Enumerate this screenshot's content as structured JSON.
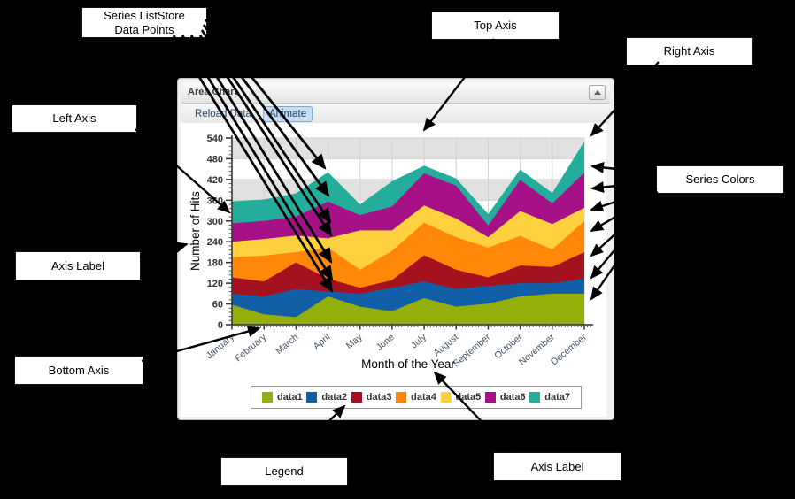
{
  "panel": {
    "title": "Area Chart",
    "toolbar": {
      "reload_label": "Reload Data",
      "animate_label": "Animate"
    }
  },
  "annotations": {
    "series_liststore": {
      "line1": "Series ListStore",
      "line2": "Data Points"
    },
    "top_axis": "Top Axis",
    "right_axis": "Right Axis",
    "left_axis": "Left Axis",
    "series_colors": "Series Colors",
    "axis_label_left": "Axis Label",
    "bottom_axis": "Bottom Axis",
    "legend": "Legend",
    "axis_label_bottom": "Axis Label"
  },
  "chart_data": {
    "type": "area",
    "stacked": true,
    "xlabel": "Month of the Year",
    "ylabel": "Number of Hits",
    "ylim": [
      0,
      540
    ],
    "ytick_step": 60,
    "grid": true,
    "legend_position": "bottom",
    "band_gray": "#e1e1e1",
    "categories": [
      "January",
      "February",
      "March",
      "April",
      "May",
      "June",
      "July",
      "August",
      "September",
      "October",
      "November",
      "December"
    ],
    "series": [
      {
        "name": "data1",
        "color": "#94ae0a",
        "values": [
          58,
          30,
          22,
          82,
          52,
          39,
          77,
          52,
          61,
          82,
          90,
          90
        ]
      },
      {
        "name": "data2",
        "color": "#115fa6",
        "values": [
          32,
          52,
          81,
          14,
          38,
          68,
          48,
          51,
          51,
          38,
          30,
          43
        ]
      },
      {
        "name": "data3",
        "color": "#a61120",
        "values": [
          47,
          43,
          77,
          37,
          17,
          22,
          76,
          56,
          25,
          51,
          47,
          77
        ]
      },
      {
        "name": "data4",
        "color": "#ff8809",
        "values": [
          58,
          75,
          30,
          90,
          52,
          85,
          94,
          94,
          86,
          86,
          51,
          90
        ]
      },
      {
        "name": "data5",
        "color": "#ffd13e",
        "values": [
          45,
          48,
          48,
          27,
          114,
          59,
          50,
          54,
          30,
          72,
          73,
          38
        ]
      },
      {
        "name": "data6",
        "color": "#a61187",
        "values": [
          53,
          52,
          55,
          106,
          44,
          69,
          93,
          95,
          34,
          90,
          60,
          102
        ]
      },
      {
        "name": "data7",
        "color": "#24ad9a",
        "values": [
          64,
          62,
          67,
          85,
          31,
          73,
          22,
          21,
          33,
          30,
          30,
          90
        ]
      }
    ]
  },
  "arrows": [
    {
      "name": "arrow-datapoint-data7",
      "from": [
        232,
        22
      ],
      "to": [
        367,
        190
      ],
      "w": 2.8
    },
    {
      "name": "arrow-datapoint-data6",
      "from": [
        230,
        28
      ],
      "to": [
        371,
        221
      ],
      "w": 2.8
    },
    {
      "name": "arrow-datapoint-data5",
      "from": [
        228,
        34
      ],
      "to": [
        373,
        251
      ],
      "w": 2.8
    },
    {
      "name": "arrow-datapoint-data4",
      "from": [
        226,
        40
      ],
      "to": [
        374,
        266
      ],
      "w": 2.8
    },
    {
      "name": "arrow-datapoint-data3",
      "from": [
        216,
        40
      ],
      "to": [
        374,
        296
      ],
      "w": 2.8
    },
    {
      "name": "arrow-datapoint-data2",
      "from": [
        206,
        40
      ],
      "to": [
        375,
        316
      ],
      "w": 2.8
    },
    {
      "name": "arrow-datapoint-data1",
      "from": [
        196,
        40
      ],
      "to": [
        375,
        329
      ],
      "w": 2.8
    },
    {
      "name": "arrow-top-axis",
      "from": [
        558,
        44
      ],
      "to": [
        479,
        147
      ],
      "w": 2.4
    },
    {
      "name": "arrow-right-axis",
      "from": [
        744,
        70
      ],
      "to": [
        668,
        153
      ],
      "w": 2.4
    },
    {
      "name": "arrow-left-axis",
      "from": [
        153,
        146
      ],
      "to": [
        259,
        240
      ],
      "w": 2.4
    },
    {
      "name": "arrow-axis-label-left",
      "from": [
        158,
        291
      ],
      "to": [
        211,
        276
      ],
      "w": 2.4
    },
    {
      "name": "arrow-bottom-axis",
      "from": [
        160,
        408
      ],
      "to": [
        293,
        371
      ],
      "w": 2.4
    },
    {
      "name": "arrow-legend",
      "from": [
        331,
        516
      ],
      "to": [
        389,
        459
      ],
      "w": 2.4
    },
    {
      "name": "arrow-axis-label-bottom",
      "from": [
        577,
        511
      ],
      "to": [
        491,
        421
      ],
      "w": 2.4
    },
    {
      "name": "arrow-color-data7",
      "from": [
        742,
        196
      ],
      "to": [
        669,
        188
      ],
      "w": 2.4
    },
    {
      "name": "arrow-color-data6",
      "from": [
        742,
        205
      ],
      "to": [
        669,
        213
      ],
      "w": 2.4
    },
    {
      "name": "arrow-color-data5",
      "from": [
        742,
        213
      ],
      "to": [
        668,
        237
      ],
      "w": 2.4
    },
    {
      "name": "arrow-color-data4",
      "from": [
        743,
        217
      ],
      "to": [
        668,
        261
      ],
      "w": 2.4
    },
    {
      "name": "arrow-color-data3",
      "from": [
        744,
        220
      ],
      "to": [
        668,
        289
      ],
      "w": 2.4
    },
    {
      "name": "arrow-color-data2",
      "from": [
        745,
        222
      ],
      "to": [
        668,
        314
      ],
      "w": 2.4
    },
    {
      "name": "arrow-color-data1",
      "from": [
        746,
        224
      ],
      "to": [
        668,
        338
      ],
      "w": 2.4
    }
  ]
}
